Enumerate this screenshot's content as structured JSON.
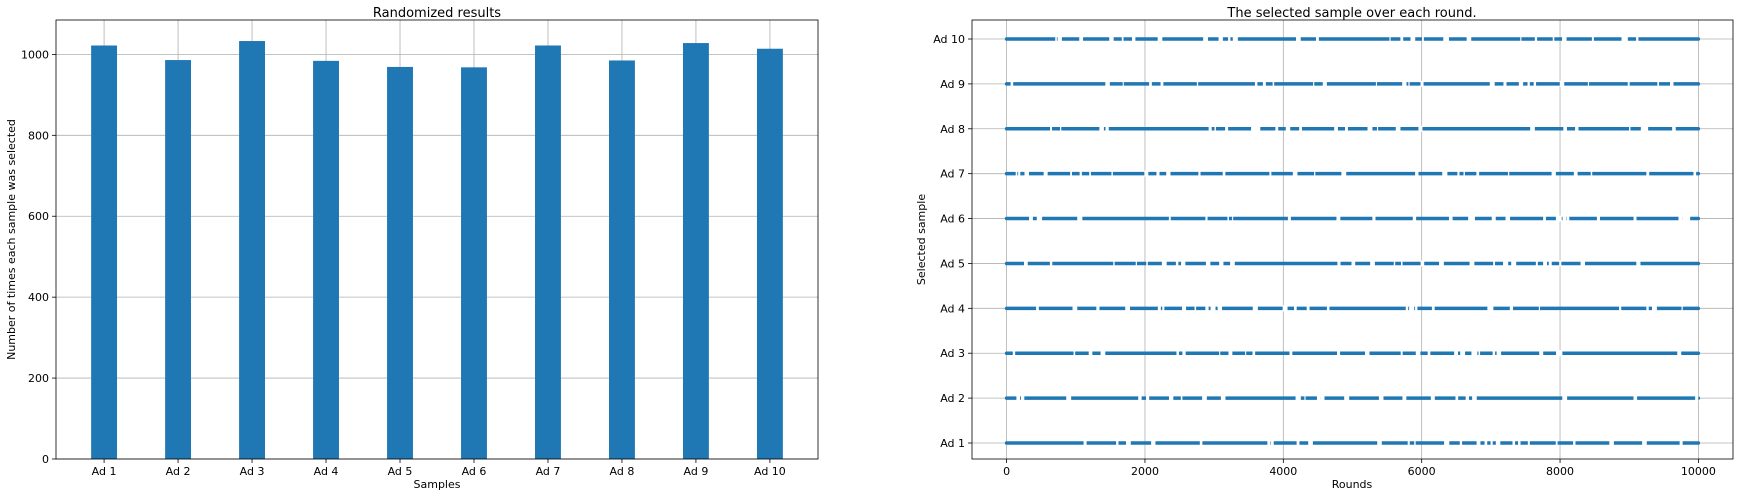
{
  "colors": {
    "bar": "#1f77b4",
    "scatter": "#1f77b4",
    "grid": "#b0b0b0"
  },
  "chart_data": [
    {
      "type": "bar",
      "title": "Randomized results",
      "xlabel": "Samples",
      "ylabel": "Number of times each sample was selected",
      "categories": [
        "Ad 1",
        "Ad 2",
        "Ad 3",
        "Ad 4",
        "Ad 5",
        "Ad 6",
        "Ad 7",
        "Ad 8",
        "Ad 9",
        "Ad 10"
      ],
      "values": [
        1022,
        986,
        1033,
        984,
        969,
        968,
        1022,
        985,
        1028,
        1014
      ],
      "ylim": [
        0,
        1085
      ],
      "yticks": [
        0,
        200,
        400,
        600,
        800,
        1000
      ],
      "grid": true
    },
    {
      "type": "scatter",
      "title": "The selected sample over each round.",
      "xlabel": "Rounds",
      "ylabel": "Selected sample",
      "categories": [
        "Ad 1",
        "Ad 2",
        "Ad 3",
        "Ad 4",
        "Ad 5",
        "Ad 6",
        "Ad 7",
        "Ad 8",
        "Ad 9",
        "Ad 10"
      ],
      "x_range": [
        0,
        9999
      ],
      "xlim": [
        -500,
        10500
      ],
      "xticks": [
        0,
        2000,
        4000,
        6000,
        8000,
        10000
      ],
      "grid": true
    }
  ]
}
